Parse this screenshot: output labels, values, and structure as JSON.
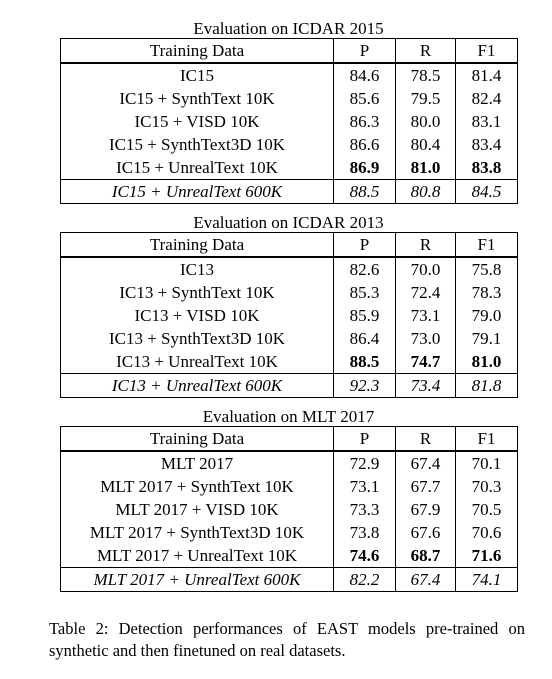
{
  "sections": [
    {
      "title": "Evaluation on ICDAR 2015",
      "header": [
        "Training Data",
        "P",
        "R",
        "F1"
      ],
      "rows": [
        {
          "cells": [
            "IC15",
            "84.6",
            "78.5",
            "81.4"
          ]
        },
        {
          "cells": [
            "IC15 + SynthText 10K",
            "85.6",
            "79.5",
            "82.4"
          ]
        },
        {
          "cells": [
            "IC15 + VISD 10K",
            "86.3",
            "80.0",
            "83.1"
          ]
        },
        {
          "cells": [
            "IC15 + SynthText3D 10K",
            "86.6",
            "80.4",
            "83.4"
          ]
        },
        {
          "cells": [
            "IC15 + UnrealText 10K",
            "86.9",
            "81.0",
            "83.8"
          ],
          "bold_values": true
        },
        {
          "cells": [
            "IC15 + UnrealText 600K",
            "88.5",
            "80.8",
            "84.5"
          ],
          "italic": true
        }
      ]
    },
    {
      "title": "Evaluation on ICDAR 2013",
      "header": [
        "Training Data",
        "P",
        "R",
        "F1"
      ],
      "rows": [
        {
          "cells": [
            "IC13",
            "82.6",
            "70.0",
            "75.8"
          ]
        },
        {
          "cells": [
            "IC13 + SynthText 10K",
            "85.3",
            "72.4",
            "78.3"
          ]
        },
        {
          "cells": [
            "IC13 + VISD 10K",
            "85.9",
            "73.1",
            "79.0"
          ]
        },
        {
          "cells": [
            "IC13 + SynthText3D 10K",
            "86.4",
            "73.0",
            "79.1"
          ]
        },
        {
          "cells": [
            "IC13 + UnrealText 10K",
            "88.5",
            "74.7",
            "81.0"
          ],
          "bold_values": true
        },
        {
          "cells": [
            "IC13 + UnrealText 600K",
            "92.3",
            "73.4",
            "81.8"
          ],
          "italic": true
        }
      ]
    },
    {
      "title": "Evaluation on MLT 2017",
      "header": [
        "Training Data",
        "P",
        "R",
        "F1"
      ],
      "rows": [
        {
          "cells": [
            "MLT 2017",
            "72.9",
            "67.4",
            "70.1"
          ]
        },
        {
          "cells": [
            "MLT 2017 + SynthText 10K",
            "73.1",
            "67.7",
            "70.3"
          ]
        },
        {
          "cells": [
            "MLT 2017 + VISD 10K",
            "73.3",
            "67.9",
            "70.5"
          ]
        },
        {
          "cells": [
            "MLT 2017 + SynthText3D 10K",
            "73.8",
            "67.6",
            "70.6"
          ]
        },
        {
          "cells": [
            "MLT 2017 + UnrealText 10K",
            "74.6",
            "68.7",
            "71.6"
          ],
          "bold_values": true
        },
        {
          "cells": [
            "MLT 2017 + UnrealText 600K",
            "82.2",
            "67.4",
            "74.1"
          ],
          "italic": true
        }
      ]
    }
  ],
  "caption": "Table 2: Detection performances of EAST models pre-trained on synthetic and then finetuned on real datasets."
}
